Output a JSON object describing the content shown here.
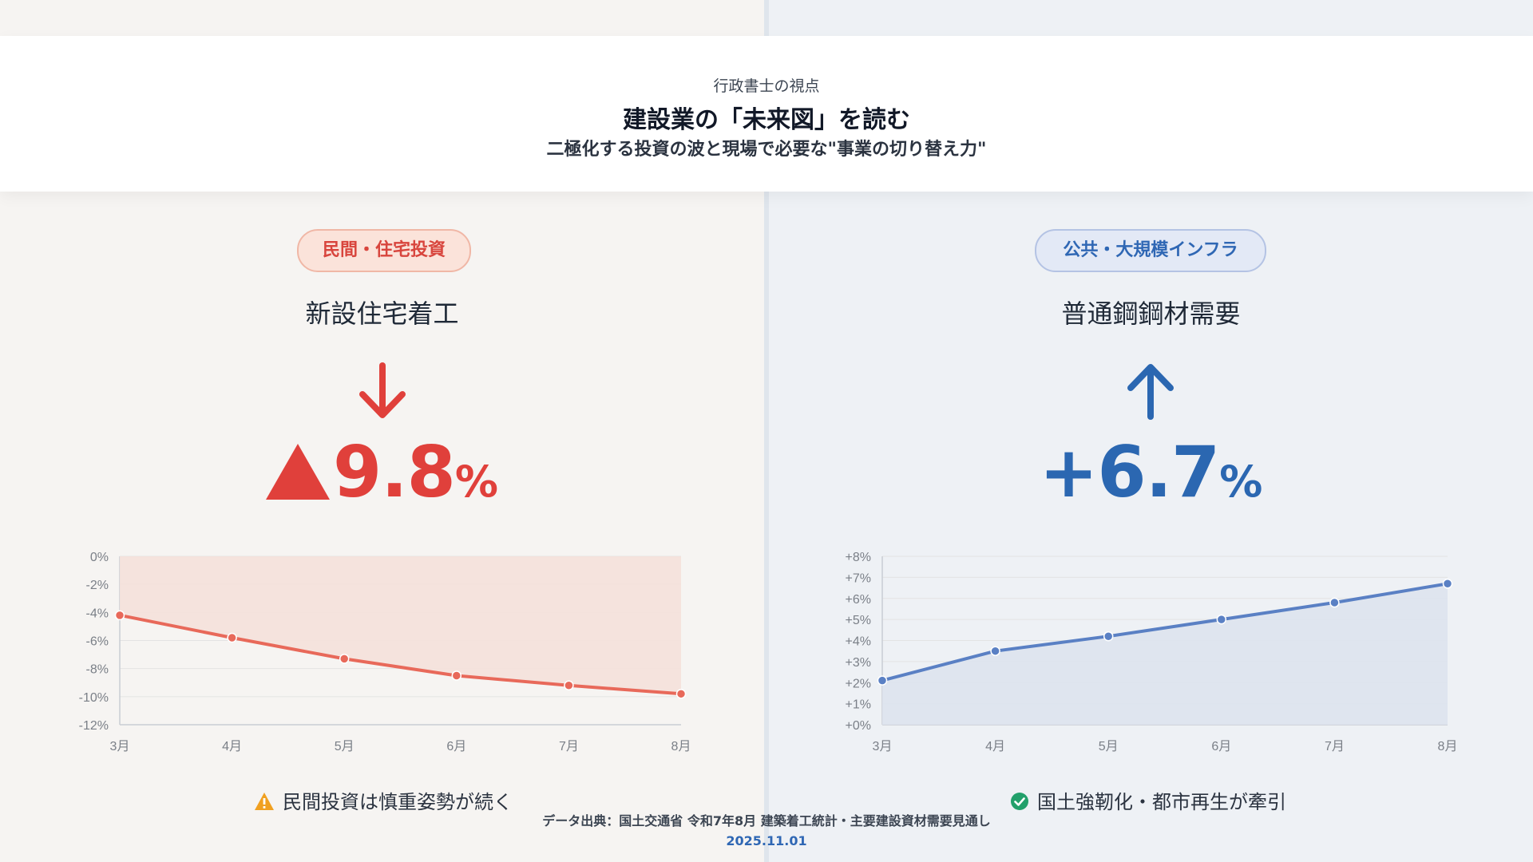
{
  "header": {
    "kicker": "行政書士の視点",
    "title": "建設業の「未来図」を読む",
    "subtitle": "二極化する投資の波と現場で必要な\"事業の切り替え力\""
  },
  "left": {
    "badge": "民間・住宅投資",
    "metric_title": "新設住宅着工",
    "direction": "down",
    "value_text": "9.8",
    "value_unit": "%",
    "note": "民間投資は慎重姿勢が続く",
    "note_icon": "warning-icon",
    "accent_color": "#e0403b"
  },
  "right": {
    "badge": "公共・大規模インフラ",
    "metric_title": "普通鋼鋼材需要",
    "direction": "up",
    "value_text": "+6.7",
    "value_unit": "%",
    "note": "国土強靭化・都市再生が牽引",
    "note_icon": "check-circle-icon",
    "accent_color": "#2b67b1"
  },
  "footer": {
    "source": "データ出典：国土交通省 令和7年8月 建築着工統計・主要建設資材需要見通し",
    "date": "2025.11.01"
  },
  "chart_data": [
    {
      "type": "line",
      "x": [
        "3月",
        "4月",
        "5月",
        "6月",
        "7月",
        "8月"
      ],
      "series": [
        {
          "values": [
            -4.2,
            -5.8,
            -7.3,
            -8.5,
            -9.2,
            -9.8
          ]
        }
      ],
      "ylim": [
        -12,
        0
      ],
      "yticks": [
        0,
        -2,
        -4,
        -6,
        -8,
        -10,
        -12
      ],
      "ytick_labels": [
        "0%",
        "-2%",
        "-4%",
        "-6%",
        "-8%",
        "-10%",
        "-12%"
      ],
      "fill": "area-to-top",
      "line_color": "#e8695a",
      "fill_color": "#f5e1da",
      "grid": true
    },
    {
      "type": "line",
      "x": [
        "3月",
        "4月",
        "5月",
        "6月",
        "7月",
        "8月"
      ],
      "series": [
        {
          "values": [
            2.1,
            3.5,
            4.2,
            5.0,
            5.8,
            6.7
          ]
        }
      ],
      "ylim": [
        0,
        8
      ],
      "yticks": [
        8,
        7,
        6,
        5,
        4,
        3,
        2,
        1,
        0
      ],
      "ytick_labels": [
        "+8%",
        "+7%",
        "+6%",
        "+5%",
        "+4%",
        "+3%",
        "+2%",
        "+1%",
        "+0%"
      ],
      "fill": "area-to-bottom",
      "line_color": "#5a80c4",
      "fill_color": "#dde3ee",
      "grid": true
    }
  ]
}
